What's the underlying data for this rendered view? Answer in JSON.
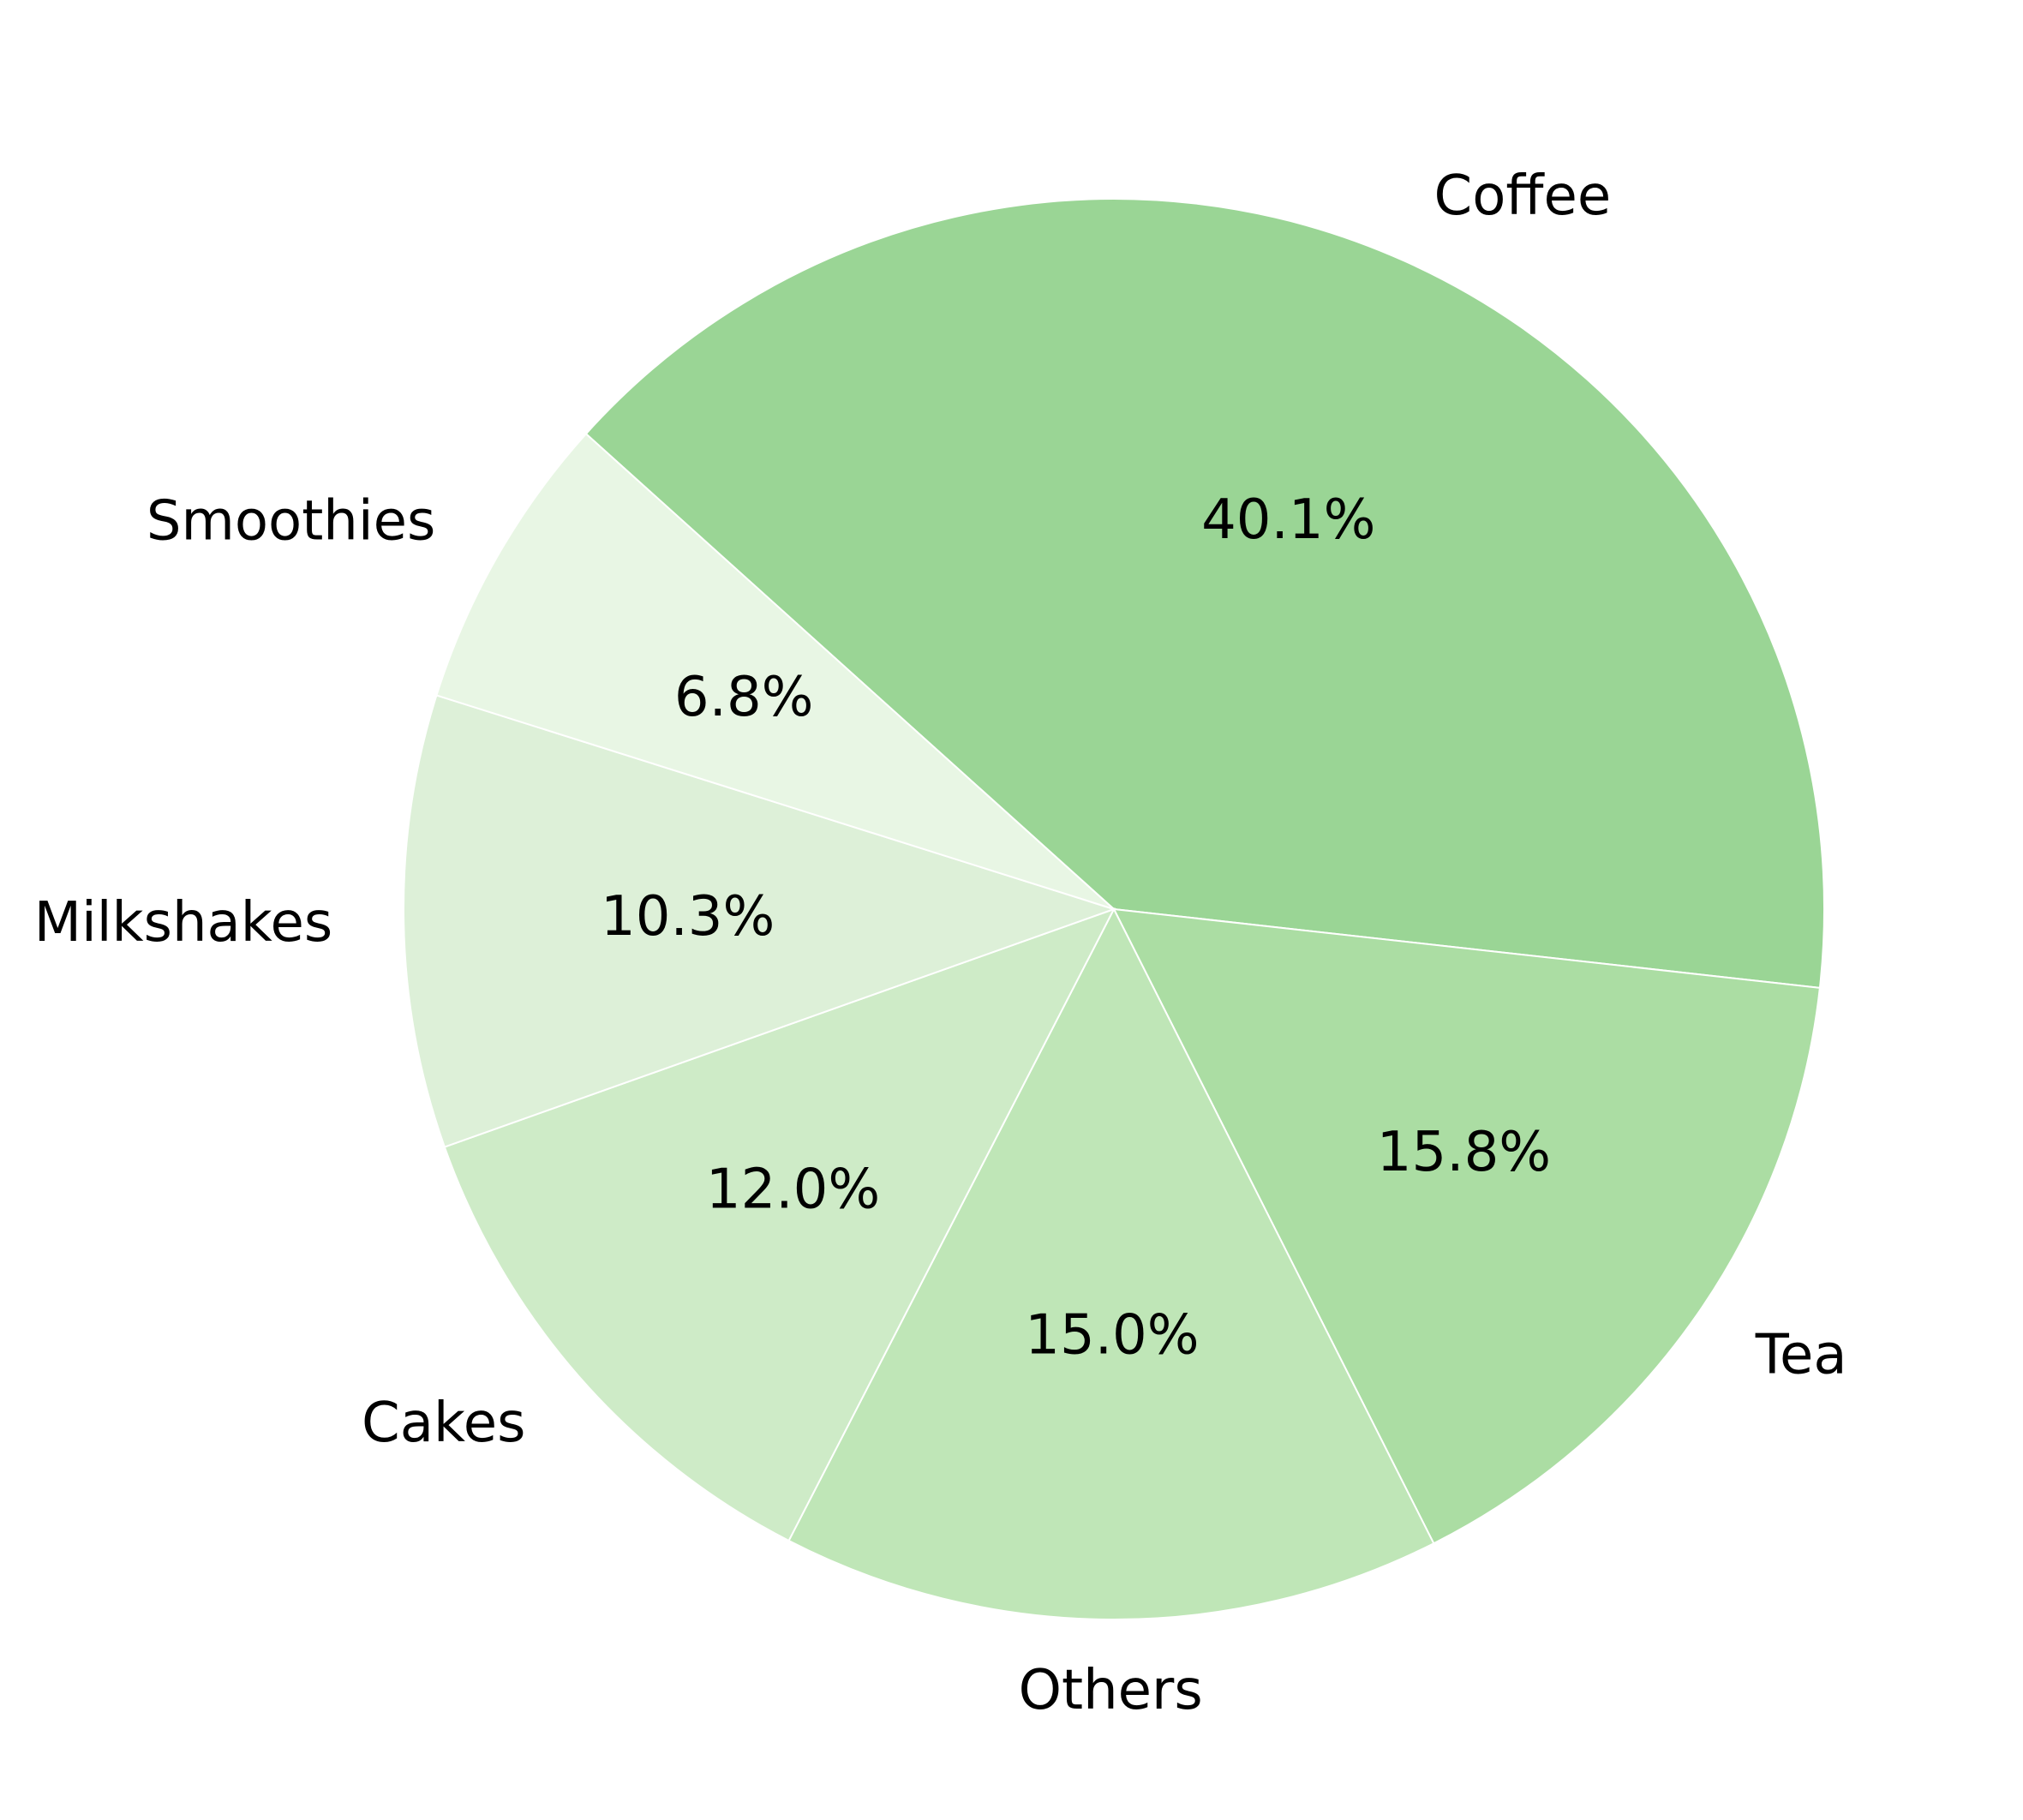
{
  "chart_data": {
    "type": "pie",
    "categories": [
      "Coffee",
      "Tea",
      "Others",
      "Cakes",
      "Milkshakes",
      "Smoothies"
    ],
    "values": [
      40.1,
      15.8,
      15.0,
      12.0,
      10.3,
      6.8
    ],
    "value_labels": [
      "40.1%",
      "15.8%",
      "15.0%",
      "12.0%",
      "10.3%",
      "6.8%"
    ],
    "colors": [
      "#9ad595",
      "#abdda3",
      "#bfe6b7",
      "#ceebc7",
      "#ddf0d8",
      "#e8f6e4"
    ],
    "start_angle_deg": 138,
    "direction": "clockwise",
    "edge_color": "#ffffff"
  }
}
